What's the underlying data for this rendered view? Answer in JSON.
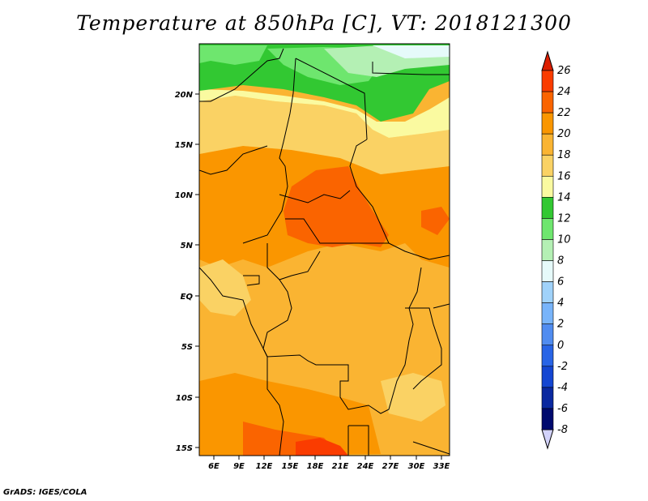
{
  "title": "Temperature at 850hPa [C], VT: 2018121300",
  "footer": "GrADS: IGES/COLA",
  "map": {
    "lat_ticks": [
      "20N",
      "15N",
      "10N",
      "5N",
      "EQ",
      "5S",
      "10S",
      "15S"
    ],
    "lon_ticks": [
      "6E",
      "9E",
      "12E",
      "15E",
      "18E",
      "21E",
      "24E",
      "27E",
      "30E",
      "33E"
    ]
  },
  "colorbar": {
    "labels": [
      "26",
      "24",
      "22",
      "20",
      "18",
      "16",
      "14",
      "12",
      "10",
      "8",
      "6",
      "4",
      "2",
      "0",
      "-2",
      "-4",
      "-6",
      "-8"
    ],
    "colors": [
      "#fa3c00",
      "#fa6400",
      "#fa9600",
      "#fab432",
      "#fad264",
      "#fafaa0",
      "#32c832",
      "#6ee66e",
      "#b4f0b4",
      "#e6fafa",
      "#a0d2fa",
      "#78b4fa",
      "#508cf0",
      "#2864e6",
      "#1446d2",
      "#0a28a0",
      "#000a6e"
    ],
    "top_arrow_color": "#dc1e00",
    "bottom_arrow_color": "#d2d2fa"
  }
}
